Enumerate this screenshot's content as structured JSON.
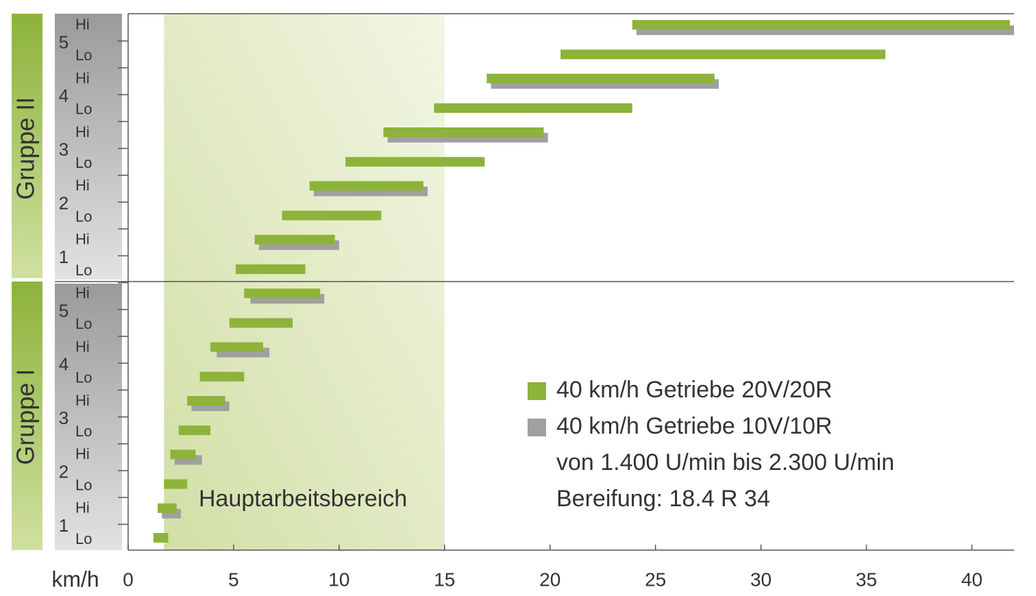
{
  "chart_data": {
    "type": "range-bar",
    "x_label": "km/h",
    "xlim": [
      0,
      42
    ],
    "xticks": [
      0,
      5,
      10,
      15,
      20,
      25,
      30,
      35,
      40
    ],
    "groups": [
      {
        "label": "Gruppe I",
        "gears": [
          "1",
          "2",
          "3",
          "4",
          "5"
        ]
      },
      {
        "label": "Gruppe II",
        "gears": [
          "1",
          "2",
          "3",
          "4",
          "5"
        ]
      }
    ],
    "ranges": [
      "Lo",
      "Hi"
    ],
    "highlight": {
      "label": "Hauptarbeitsbereich",
      "start": 1.7,
      "end": 15,
      "color": "#dfe8bf"
    },
    "series": [
      {
        "name": "40 km/h Getriebe 20V/20R",
        "color": "#8db33a",
        "start": [
          1.2,
          1.4,
          1.7,
          2.0,
          2.4,
          2.8,
          3.4,
          3.9,
          4.8,
          5.5,
          5.1,
          6.0,
          7.3,
          8.6,
          10.3,
          12.1,
          14.5,
          17.0,
          20.5,
          23.9
        ],
        "end": [
          1.9,
          2.3,
          2.8,
          3.2,
          3.9,
          4.6,
          5.5,
          6.4,
          7.8,
          9.1,
          8.4,
          9.8,
          12.0,
          14.0,
          16.9,
          19.7,
          23.9,
          27.8,
          35.9,
          41.8
        ]
      },
      {
        "name": "40 km/h Getriebe 10V/10R",
        "color": "#a0a0a0",
        "start": [
          null,
          1.6,
          null,
          2.2,
          null,
          3.0,
          null,
          4.2,
          null,
          5.8,
          null,
          6.2,
          null,
          8.8,
          null,
          12.3,
          null,
          17.2,
          null,
          24.1
        ],
        "end": [
          null,
          2.5,
          null,
          3.5,
          null,
          4.8,
          null,
          6.7,
          null,
          9.3,
          null,
          10.0,
          null,
          14.2,
          null,
          19.9,
          null,
          28.0,
          null,
          42.0
        ]
      }
    ],
    "notes": [
      "von 1.400 U/min bis 2.300 U/min",
      "Bereifung: 18.4 R 34"
    ]
  }
}
